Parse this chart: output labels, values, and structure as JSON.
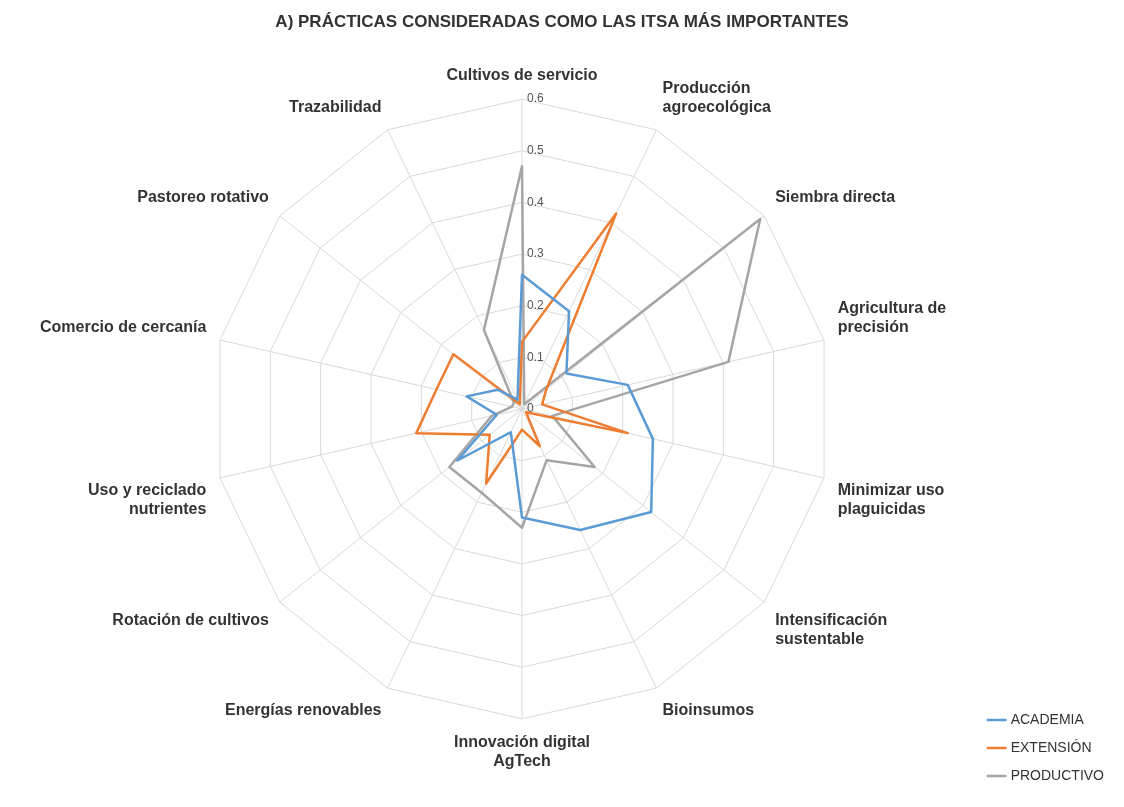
{
  "chart_data": {
    "type": "radar",
    "title": "A) PRÁCTICAS CONSIDERADAS COMO LAS ITSA MÁS IMPORTANTES",
    "categories": [
      "Cultivos de servicio",
      "Producción agroecológica",
      "Siembra directa",
      "Agricultura de precisión",
      "Minimizar uso plaguicidas",
      "Intensificación sustentable",
      "Bioinsumos",
      "Innovación digital AgTech",
      "Energías renovables",
      "Rotación de cultivos",
      "Uso y reciclado nutrientes",
      "Comercio de cercanía",
      "Pastoreo rotativo",
      "Trazabilidad"
    ],
    "series": [
      {
        "name": "ACADEMIA",
        "color": "#5b9bd5",
        "values": [
          0.26,
          0.21,
          0.11,
          0.21,
          0.26,
          0.32,
          0.26,
          0.21,
          0.05,
          0.16,
          0.05,
          0.11,
          0.06,
          0.02
        ]
      },
      {
        "name": "EXTENSIÓN",
        "color": "#ed7d31",
        "values": [
          0.13,
          0.42,
          0.06,
          0.04,
          0.21,
          0.01,
          0.08,
          0.04,
          0.16,
          0.08,
          0.21,
          0.17,
          0.17,
          0.01
        ]
      },
      {
        "name": "PRODUCTIVO",
        "color": "#a5a5a5",
        "values": [
          0.47,
          0.01,
          0.59,
          0.41,
          0.06,
          0.18,
          0.11,
          0.23,
          0.18,
          0.18,
          0.06,
          0.02,
          0.02,
          0.17
        ]
      }
    ],
    "ylim": [
      0,
      0.6
    ],
    "yticks": [
      0,
      0.1,
      0.2,
      0.3,
      0.4,
      0.5,
      0.6
    ],
    "grid": true,
    "legend": "bottom right",
    "marker": "none",
    "line_style": "solid"
  }
}
